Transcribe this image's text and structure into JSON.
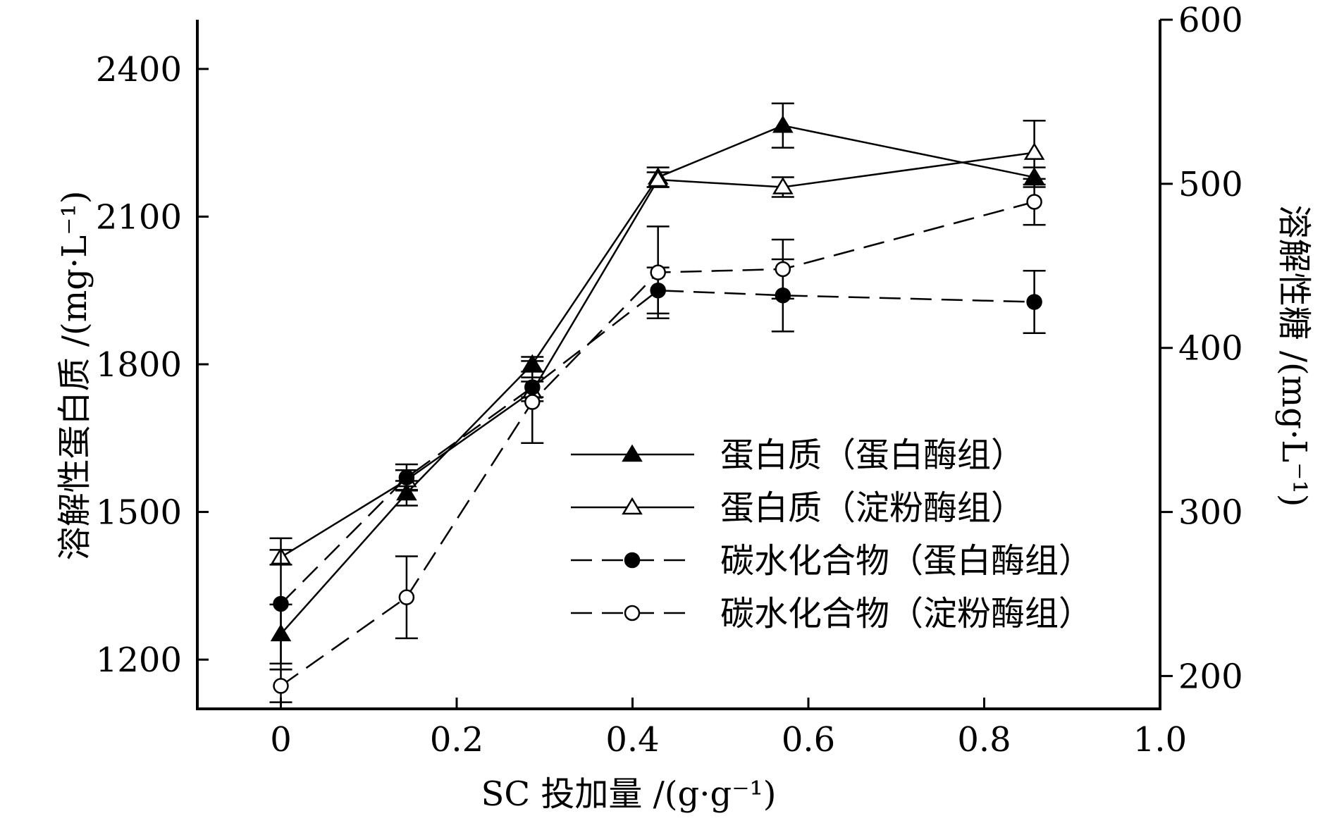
{
  "chart_data": {
    "type": "line",
    "xlabel": "SC 投加量 /(g·g⁻¹)",
    "ylabel_left": "溶解性蛋白质 /(mg·L⁻¹)",
    "ylabel_right": "溶解性糖 /(mg·L⁻¹)",
    "xlim": [
      -0.095,
      1.0
    ],
    "ylim_left": [
      1100,
      2500
    ],
    "ylim_right": [
      180,
      600
    ],
    "x_ticks": [
      "0",
      "0.2",
      "0.4",
      "0.6",
      "0.8",
      "1.0"
    ],
    "y_left_ticks": [
      "1200",
      "1500",
      "1800",
      "2100",
      "2400"
    ],
    "y_right_ticks": [
      "200",
      "300",
      "400",
      "500",
      "600"
    ],
    "x": [
      0,
      0.143,
      0.286,
      0.429,
      0.571,
      0.857
    ],
    "legend_position": "lower-right",
    "series": [
      {
        "name": "蛋白质（蛋白酶组）",
        "axis": "left",
        "marker": "filled-triangle",
        "line": "solid",
        "values": [
          1252,
          1538,
          1800,
          2180,
          2285,
          2180
        ],
        "errors": [
          60,
          25,
          15,
          20,
          45,
          20
        ]
      },
      {
        "name": "蛋白质（淀粉酶组）",
        "axis": "left",
        "marker": "open-triangle",
        "line": "solid",
        "values": [
          1408,
          1565,
          1745,
          2175,
          2160,
          2230
        ],
        "errors": [
          15,
          20,
          20,
          15,
          20,
          65
        ]
      },
      {
        "name": "碳水化合物（蛋白酶组）",
        "axis": "right",
        "marker": "filled-circle",
        "line": "dashed",
        "values": [
          244,
          321,
          376,
          435,
          432,
          428
        ],
        "errors": [
          40,
          8,
          6,
          14,
          22,
          19
        ]
      },
      {
        "name": "碳水化合物（淀粉酶组）",
        "axis": "right",
        "marker": "open-circle",
        "line": "dashed",
        "values": [
          194,
          248,
          367,
          446,
          448,
          489
        ],
        "errors": [
          10,
          25,
          25,
          28,
          18,
          14
        ]
      }
    ]
  }
}
